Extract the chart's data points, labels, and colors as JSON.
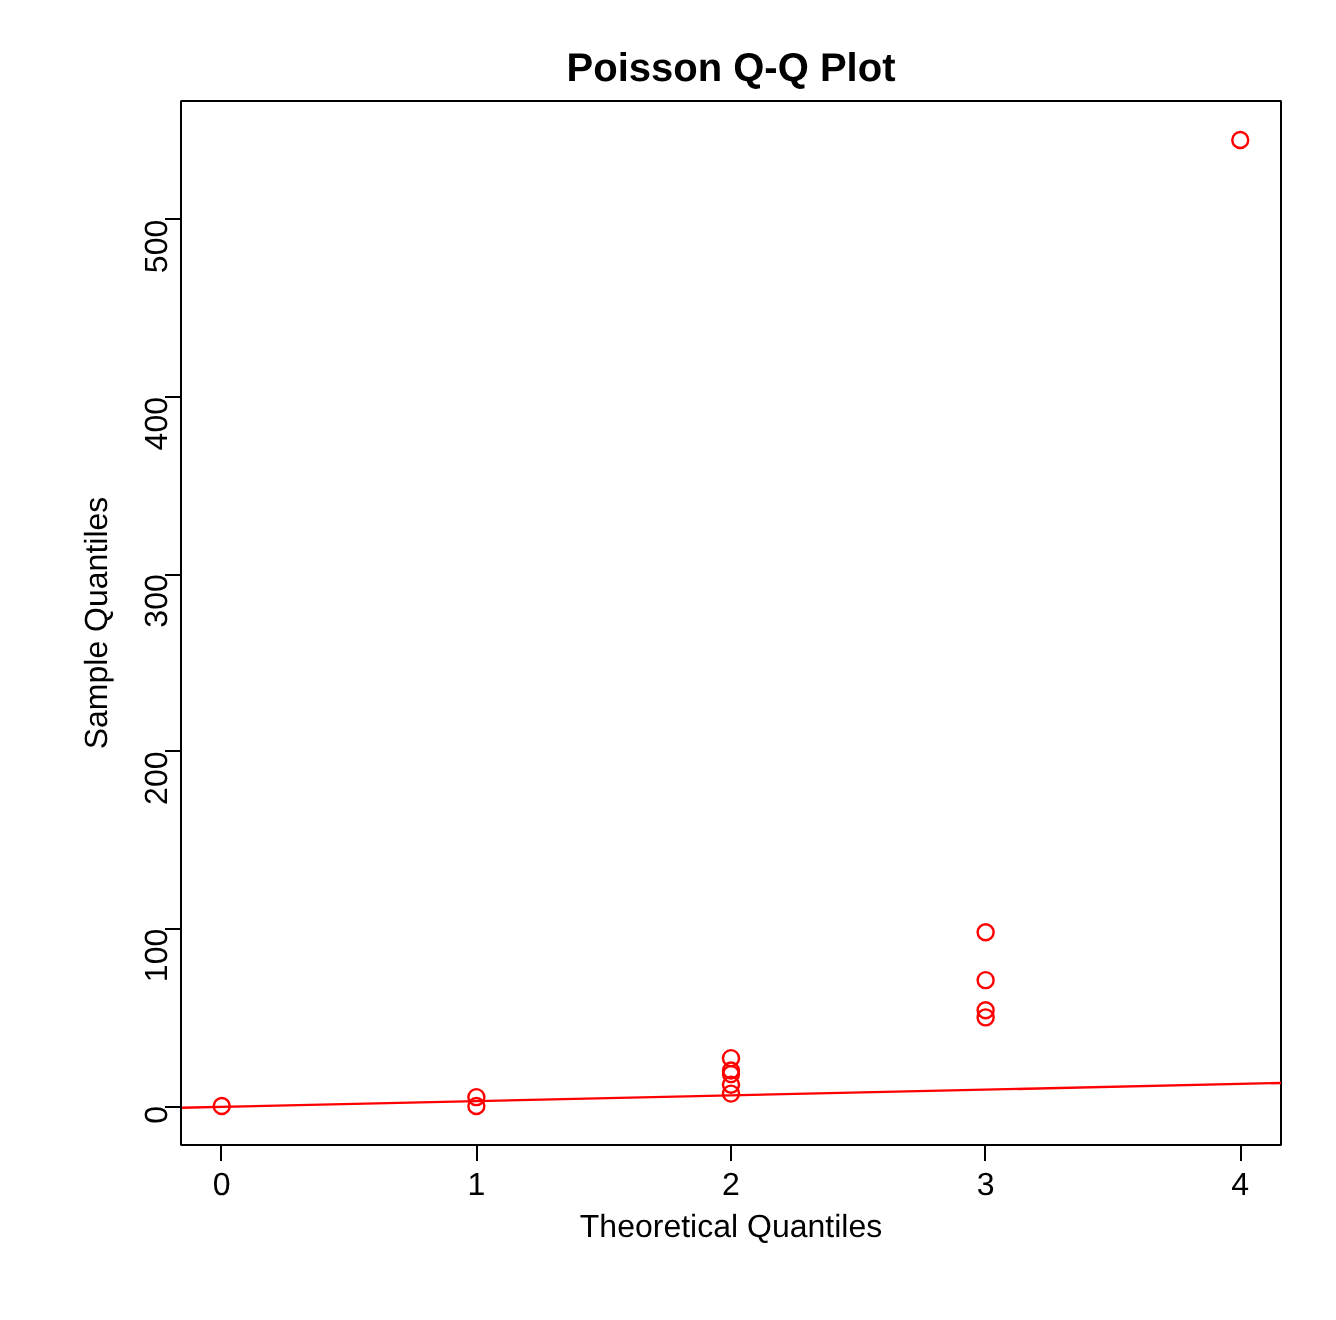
{
  "chart_data": {
    "type": "scatter",
    "title": "Poisson Q-Q Plot",
    "xlabel": "Theoretical Quantiles",
    "ylabel": "Sample Quantiles",
    "xlim": [
      -0.16,
      4.16
    ],
    "ylim": [
      -22,
      567
    ],
    "xticks": [
      0,
      1,
      2,
      3,
      4
    ],
    "yticks": [
      0,
      100,
      200,
      300,
      400,
      500
    ],
    "grid": false,
    "series": [
      {
        "marker": "circle",
        "color": "#ff0000",
        "x": [
          0,
          1,
          1,
          2,
          2,
          2,
          2,
          2,
          3,
          3,
          3,
          3,
          4
        ],
        "values": [
          0,
          0,
          5,
          7,
          12,
          18,
          20,
          27,
          50,
          54,
          71,
          98,
          545
        ]
      },
      {
        "type": "line",
        "marker": "none",
        "color": "#ff0000",
        "x": [
          -0.16,
          4.16
        ],
        "values": [
          -1,
          13
        ]
      }
    ]
  }
}
